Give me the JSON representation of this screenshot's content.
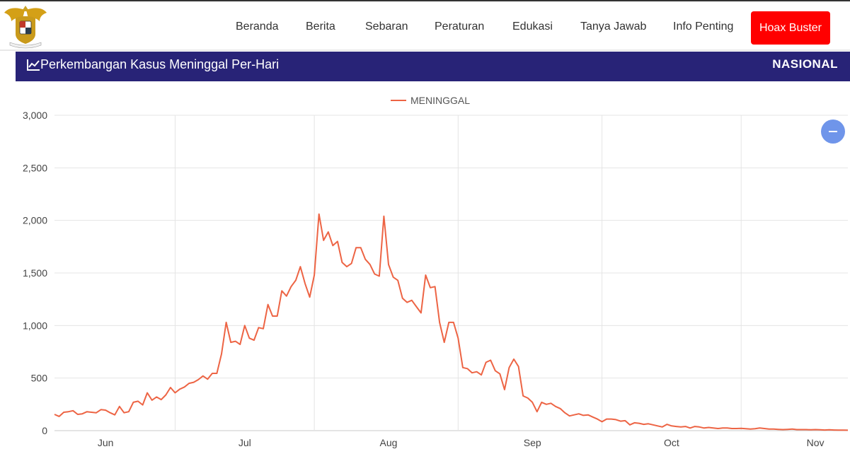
{
  "nav": {
    "items": [
      "Beranda",
      "Berita",
      "Sebaran",
      "Peraturan",
      "Edukasi",
      "Tanya Jawab",
      "Info Penting"
    ],
    "hoax_label": "Hoax Buster"
  },
  "panel": {
    "title": "Perkembangan Kasus Meninggal Per-Hari",
    "region": "NASIONAL",
    "header_color": "#282377"
  },
  "colors": {
    "series": "#ed6444",
    "hoax": "#ff0000",
    "zoom": "#6f95ea"
  },
  "icons": {
    "logo": "garuda-emblem-icon",
    "title": "trend-chart-icon",
    "zoom": "minus-icon"
  },
  "chart_data": {
    "type": "line",
    "x_start": "2021-05-21",
    "ylim": [
      0,
      3000
    ],
    "yticks": [
      0,
      500,
      1000,
      1500,
      2000,
      2500,
      3000
    ],
    "yticklabels": [
      "0",
      "500",
      "1,000",
      "1,500",
      "2,000",
      "2,500",
      "3,000"
    ],
    "xticks": [
      "2021-06-01",
      "2021-07-01",
      "2021-08-01",
      "2021-09-01",
      "2021-10-01",
      "2021-11-01"
    ],
    "xticklabels": [
      "Jun",
      "Jul",
      "Aug",
      "Sep",
      "Oct",
      "Nov"
    ],
    "grid": true,
    "legend_position": "top-center",
    "series": [
      {
        "name": "MENINGGAL",
        "values": [
          155,
          135,
          175,
          180,
          190,
          155,
          160,
          180,
          175,
          170,
          200,
          195,
          170,
          150,
          230,
          170,
          180,
          270,
          280,
          245,
          360,
          290,
          320,
          295,
          340,
          410,
          360,
          395,
          415,
          450,
          460,
          485,
          520,
          490,
          545,
          545,
          730,
          1030,
          840,
          850,
          820,
          1000,
          880,
          860,
          980,
          970,
          1200,
          1090,
          1090,
          1330,
          1280,
          1370,
          1430,
          1560,
          1400,
          1270,
          1480,
          2060,
          1810,
          1890,
          1760,
          1800,
          1600,
          1560,
          1590,
          1740,
          1740,
          1630,
          1580,
          1490,
          1470,
          2040,
          1580,
          1460,
          1430,
          1260,
          1220,
          1240,
          1180,
          1120,
          1480,
          1360,
          1370,
          1030,
          840,
          1030,
          1030,
          880,
          600,
          590,
          550,
          560,
          530,
          650,
          670,
          570,
          540,
          390,
          600,
          680,
          610,
          330,
          310,
          270,
          180,
          270,
          250,
          260,
          230,
          210,
          170,
          140,
          150,
          160,
          145,
          150,
          130,
          110,
          85,
          110,
          110,
          105,
          90,
          95,
          55,
          75,
          70,
          60,
          65,
          55,
          45,
          35,
          60,
          45,
          40,
          35,
          40,
          25,
          40,
          35,
          25,
          30,
          25,
          20,
          25,
          25,
          20,
          20,
          22,
          18,
          15,
          18,
          25,
          20,
          15,
          15,
          12,
          10,
          12,
          15,
          10,
          10,
          10,
          8,
          10,
          8,
          6,
          8,
          6,
          5,
          5,
          4
        ]
      }
    ]
  }
}
